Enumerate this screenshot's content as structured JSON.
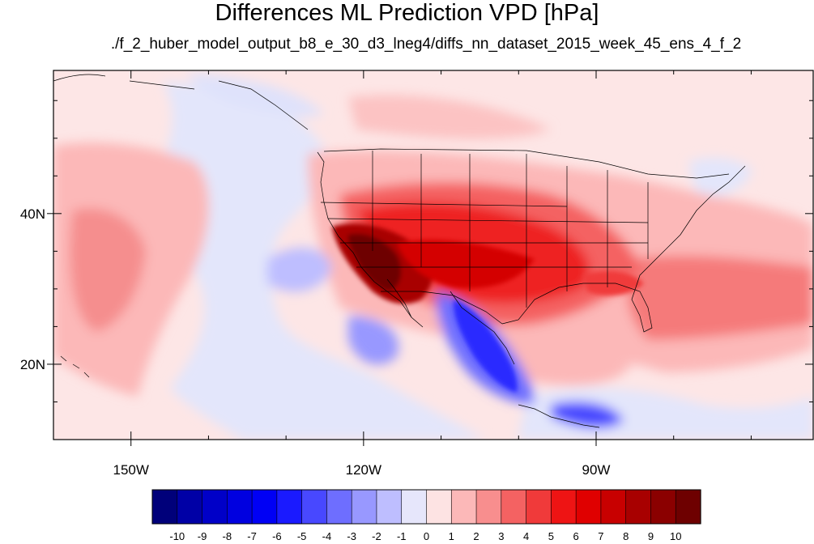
{
  "chart_data": {
    "type": "heatmap",
    "title": "Differences ML Prediction VPD [hPa]",
    "subtitle": "./f_2_huber_model_output_b8_e_30_d3_lneg4/diffs_nn_dataset_2015_week_45_ens_4_f_2",
    "xlim": [
      -160,
      -62
    ],
    "ylim": [
      10,
      59
    ],
    "x_ticks": [
      {
        "value": -150,
        "label": "150W"
      },
      {
        "value": -120,
        "label": "120W"
      },
      {
        "value": -90,
        "label": "90W"
      }
    ],
    "y_ticks": [
      {
        "value": 40,
        "label": "40N"
      },
      {
        "value": 20,
        "label": "20N"
      }
    ],
    "colorbar": {
      "levels": [
        -10,
        -9,
        -8,
        -7,
        -6,
        -5,
        -4,
        -3,
        -2,
        -1,
        0,
        1,
        2,
        3,
        4,
        5,
        6,
        7,
        8,
        9,
        10
      ],
      "colors": [
        "#00007a",
        "#0000a6",
        "#0000c8",
        "#0000e0",
        "#0000f5",
        "#1a1aff",
        "#4848ff",
        "#6e6eff",
        "#9898ff",
        "#bebeff",
        "#e6e6fb",
        "#fde3e3",
        "#fcb8b8",
        "#f88e8e",
        "#f46262",
        "#f03a3a",
        "#ee1414",
        "#e00000",
        "#c80000",
        "#a80000",
        "#8b0000",
        "#6e0000"
      ]
    }
  }
}
